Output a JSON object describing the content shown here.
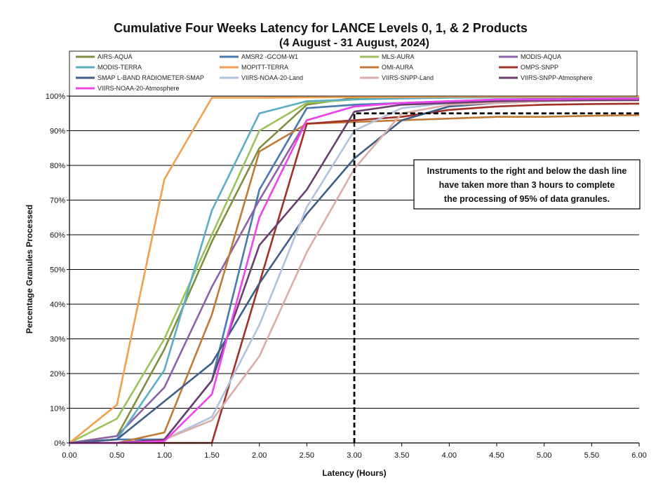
{
  "chart_data": {
    "type": "line",
    "title": "Cumulative Four Weeks Latency  for LANCE Levels 0, 1, & 2 Products",
    "subtitle": "(4  August   -  31  August,  2024)",
    "xlabel": "Latency (Hours)",
    "ylabel": "Percentage Granules Processed",
    "xlim": [
      0,
      6
    ],
    "ylim": [
      0,
      100
    ],
    "x_ticks": [
      "0.00",
      "0.50",
      "1.00",
      "1.50",
      "2.00",
      "2.50",
      "3.00",
      "3.50",
      "4.00",
      "4.50",
      "5.00",
      "5.50",
      "6.00"
    ],
    "y_ticks": [
      "0%",
      "10%",
      "20%",
      "30%",
      "40%",
      "50%",
      "60%",
      "70%",
      "80%",
      "90%",
      "100%"
    ],
    "grid": "horizontal",
    "legend_position": "top",
    "x": [
      0,
      0.5,
      1.0,
      1.5,
      2.0,
      2.5,
      3.0,
      3.5,
      4.0,
      4.5,
      5.0,
      5.5,
      6.0
    ],
    "series": [
      {
        "name": "AIRS-AQUA",
        "color": "#7f8f3f",
        "values": [
          0,
          2,
          27,
          58,
          85,
          97.5,
          99.5,
          99.6,
          99.7,
          99.8,
          99.8,
          99.9,
          99.9
        ]
      },
      {
        "name": "AMSR2 -GCOM-W1",
        "color": "#4a78b0",
        "values": [
          0,
          1,
          1,
          18,
          73,
          96.5,
          97.5,
          98,
          98.5,
          98.7,
          98.9,
          99,
          99.1
        ]
      },
      {
        "name": "MLS-AURA",
        "color": "#9bc25a",
        "values": [
          0,
          7,
          30,
          60,
          90,
          98,
          99,
          99.5,
          99.6,
          99.7,
          99.8,
          99.8,
          99.9
        ]
      },
      {
        "name": "MODIS-AQUA",
        "color": "#8c62a8",
        "values": [
          0,
          2,
          16,
          45,
          70,
          93,
          97,
          98,
          98.5,
          99,
          99.2,
          99.3,
          99.4
        ]
      },
      {
        "name": "MODIS-TERRA",
        "color": "#5baec4",
        "values": [
          0,
          1,
          21,
          67,
          95,
          98.5,
          99,
          99.3,
          99.5,
          99.6,
          99.7,
          99.8,
          99.8
        ]
      },
      {
        "name": "MOPITT-TERRA",
        "color": "#f0a050",
        "values": [
          0,
          11,
          76,
          99.5,
          99.5,
          99.6,
          99.7,
          99.7,
          99.8,
          99.8,
          99.8,
          99.9,
          99.9
        ]
      },
      {
        "name": "OMI-AURA",
        "color": "#c07a35",
        "values": [
          0,
          0,
          3,
          37,
          84,
          92,
          92.5,
          93,
          93.5,
          94,
          94,
          94.3,
          94.5
        ]
      },
      {
        "name": "OMPS-SNPP",
        "color": "#a03028",
        "values": [
          0,
          0,
          0,
          0,
          46,
          92,
          93,
          94,
          96,
          97,
          97.5,
          97.7,
          97.8
        ]
      },
      {
        "name": "SMAP L-BAND RADIOMETER-SMAP",
        "color": "#3f5e86",
        "values": [
          0,
          1,
          12,
          23,
          46,
          66,
          82,
          93,
          97,
          98,
          98.5,
          98.8,
          99
        ]
      },
      {
        "name": "VIIRS-NOAA-20-Land",
        "color": "#b0c2dd",
        "values": [
          0,
          0,
          1,
          7.5,
          34,
          68,
          90,
          96.5,
          98,
          98.5,
          98.8,
          99,
          99
        ]
      },
      {
        "name": "VIIRS-SNPP-Land",
        "color": "#d9aeaa",
        "values": [
          0,
          0,
          1,
          6.5,
          25,
          55,
          79,
          95,
          97.5,
          98,
          98.5,
          98.7,
          98.8
        ]
      },
      {
        "name": "VIIRS-SNPP-Atmosphere",
        "color": "#6a3f6f",
        "values": [
          0,
          0,
          1,
          18,
          57,
          73,
          95.5,
          97.5,
          98,
          98.5,
          98.7,
          98.8,
          98.8
        ]
      },
      {
        "name": "VIIRS-NOAA-20-Atmosphere",
        "color": "#ee44ee",
        "values": [
          0,
          0,
          0.5,
          14,
          65,
          93,
          97,
          98,
          98.5,
          99,
          99,
          99.2,
          99.2
        ]
      }
    ],
    "threshold_line": {
      "x": 3.0,
      "y": 95
    },
    "annotation": "Instruments to the right and below the dash line have taken more than 3 hours to complete the processing of 95% of data granules."
  }
}
